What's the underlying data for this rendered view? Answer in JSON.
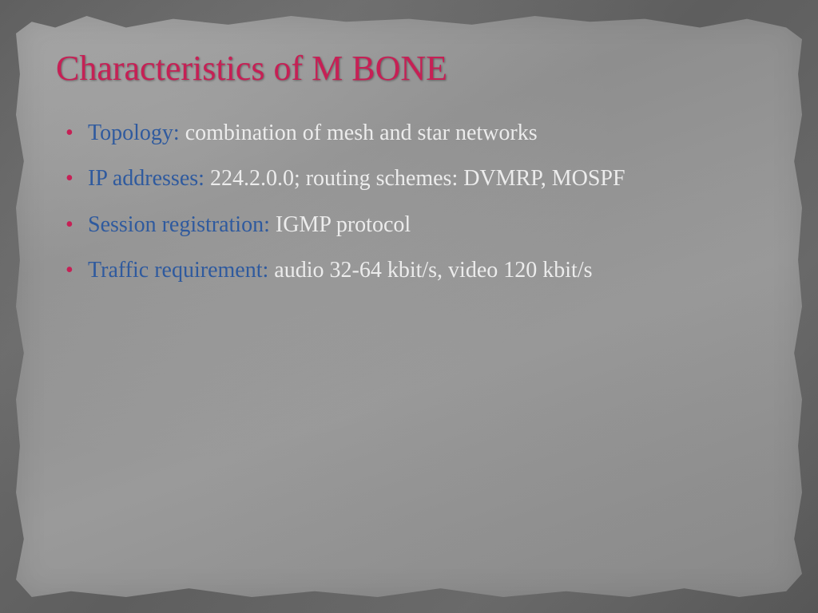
{
  "slide": {
    "title": "Characteristics of M BONE",
    "title_color": "#c62055",
    "bullet_marker_color": "#c62055",
    "label_color": "#2f5a9e",
    "body_color": "#ececec",
    "title_fontsize": 44,
    "body_fontsize": 28,
    "background_outer": "#555555",
    "background_paper": "#949494",
    "bullets": [
      {
        "label": "Topology:",
        "body": " combination of mesh and star networks"
      },
      {
        "label": " IP addresses:",
        "body": " 224.2.0.0; routing schemes: DVMRP, MOSPF"
      },
      {
        "label": " Session registration:",
        "body": " IGMP protocol"
      },
      {
        "label": " Traffic requirement:",
        "body": " audio 32-64 kbit/s, video 120 kbit/s"
      }
    ]
  }
}
